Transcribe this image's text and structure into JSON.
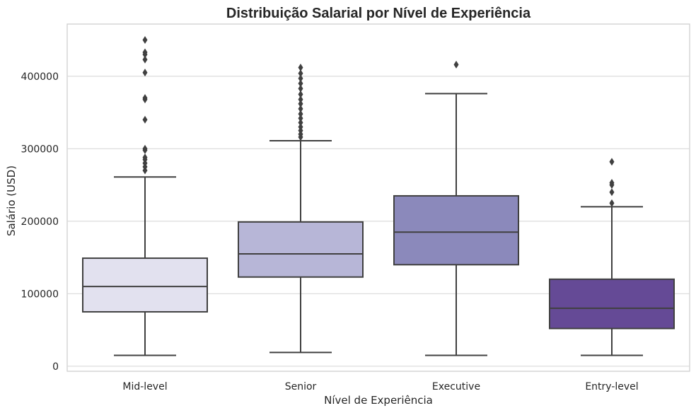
{
  "chart_data": {
    "type": "box",
    "title": "Distribuição Salarial por Nível de Experiência",
    "xlabel": "Nível de Experiência",
    "ylabel": "Salário (USD)",
    "ylim": [
      -7000,
      472000
    ],
    "yticks": [
      0,
      100000,
      200000,
      300000,
      400000
    ],
    "ytick_labels": [
      "0",
      "100000",
      "200000",
      "300000",
      "400000"
    ],
    "grid": "horizontal",
    "categories": [
      "Mid-level",
      "Senior",
      "Executive",
      "Entry-level"
    ],
    "boxes": [
      {
        "category": "Mid-level",
        "whisker_low": 15000,
        "q1": 75000,
        "median": 110000,
        "q3": 149000,
        "whisker_high": 261000,
        "outliers": [
          270000,
          275000,
          280000,
          285000,
          288000,
          298000,
          300000,
          340000,
          368000,
          370000,
          405000,
          423000,
          430000,
          433000,
          450000
        ],
        "color": "#e2e1ef"
      },
      {
        "category": "Senior",
        "whisker_low": 19000,
        "q1": 123000,
        "median": 155000,
        "q3": 199000,
        "whisker_high": 311000,
        "outliers": [
          316000,
          320000,
          325000,
          330000,
          336000,
          342000,
          348000,
          355000,
          362000,
          368000,
          375000,
          383000,
          390000,
          397000,
          404000,
          412000
        ],
        "color": "#b7b6d7"
      },
      {
        "category": "Executive",
        "whisker_low": 15000,
        "q1": 140000,
        "median": 185000,
        "q3": 235000,
        "whisker_high": 376000,
        "outliers": [
          416000
        ],
        "color": "#8b89bb"
      },
      {
        "category": "Entry-level",
        "whisker_low": 15000,
        "q1": 52000,
        "median": 80000,
        "q3": 120000,
        "whisker_high": 220000,
        "outliers": [
          225000,
          240000,
          250000,
          253000,
          282000
        ],
        "color": "#654a96"
      }
    ],
    "line_color": "#404040",
    "grid_color": "#d9d9d9"
  }
}
